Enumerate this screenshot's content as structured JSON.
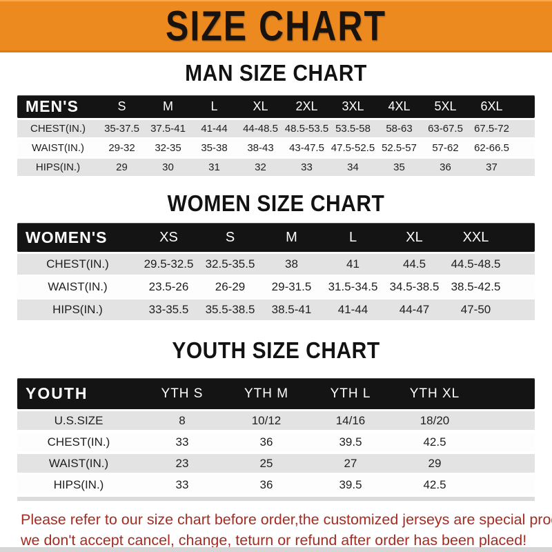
{
  "banner": {
    "title": "SIZE CHART"
  },
  "colors": {
    "banner_bg": "#ED8A1F",
    "band_bg": "#141414",
    "row_stripe": "#E3E3E3",
    "note_color": "#A62B21"
  },
  "tables": [
    {
      "id": "men",
      "heading": "MAN SIZE CHART",
      "header_label": "MEN'S",
      "columns": [
        "S",
        "M",
        "L",
        "XL",
        "2XL",
        "3XL",
        "4XL",
        "5XL",
        "6XL"
      ],
      "rows": [
        {
          "label": "CHEST(IN.)",
          "values": [
            "35-37.5",
            "37.5-41",
            "41-44",
            "44-48.5",
            "48.5-53.5",
            "53.5-58",
            "58-63",
            "63-67.5",
            "67.5-72"
          ]
        },
        {
          "label": "WAIST(IN.)",
          "values": [
            "29-32",
            "32-35",
            "35-38",
            "38-43",
            "43-47.5",
            "47.5-52.5",
            "52.5-57",
            "57-62",
            "62-66.5"
          ]
        },
        {
          "label": "HIPS(IN.)",
          "values": [
            "29",
            "30",
            "31",
            "32",
            "33",
            "34",
            "35",
            "36",
            "37"
          ]
        }
      ]
    },
    {
      "id": "women",
      "heading": "WOMEN SIZE CHART",
      "header_label": "WOMEN'S",
      "columns": [
        "XS",
        "S",
        "M",
        "L",
        "XL",
        "XXL"
      ],
      "rows": [
        {
          "label": "CHEST(IN.)",
          "values": [
            "29.5-32.5",
            "32.5-35.5",
            "38",
            "41",
            "44.5",
            "44.5-48.5"
          ]
        },
        {
          "label": "WAIST(IN.)",
          "values": [
            "23.5-26",
            "26-29",
            "29-31.5",
            "31.5-34.5",
            "34.5-38.5",
            "38.5-42.5"
          ]
        },
        {
          "label": "HIPS(IN.)",
          "values": [
            "33-35.5",
            "35.5-38.5",
            "38.5-41",
            "41-44",
            "44-47",
            "47-50"
          ]
        }
      ]
    },
    {
      "id": "youth",
      "heading": "YOUTH SIZE CHART",
      "header_label": "YOUTH",
      "columns": [
        "YTH S",
        "YTH M",
        "YTH L",
        "YTH XL"
      ],
      "rows": [
        {
          "label": "U.S.SIZE",
          "values": [
            "8",
            "10/12",
            "14/16",
            "18/20"
          ]
        },
        {
          "label": "CHEST(IN.)",
          "values": [
            "33",
            "36",
            "39.5",
            "42.5"
          ]
        },
        {
          "label": "WAIST(IN.)",
          "values": [
            "23",
            "25",
            "27",
            "29"
          ]
        },
        {
          "label": "HIPS(IN.)",
          "values": [
            "33",
            "36",
            "39.5",
            "42.5"
          ]
        }
      ]
    }
  ],
  "notes": {
    "line1": "Please refer to our size chart before order,the customized jerseys are special products,",
    "line2": "we don't accept cancel, change, teturn or refund after order has been placed!"
  }
}
